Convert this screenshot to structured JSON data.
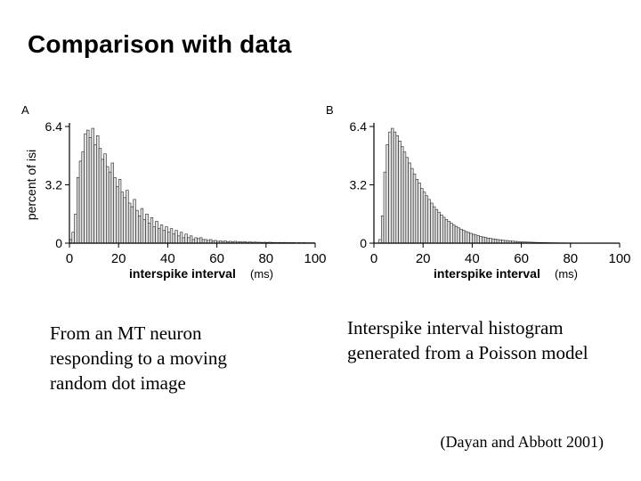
{
  "slide": {
    "title": "Comparison with data",
    "caption_a": "From an MT neuron responding to a moving random dot image",
    "caption_b": "Interspike interval histogram generated from a Poisson model",
    "citation": "(Dayan and Abbott 2001)"
  },
  "chart_data": [
    {
      "type": "bar",
      "panel_label": "A",
      "xlabel": "interspike interval",
      "xunit": "(ms)",
      "ylabel": "percent of isi",
      "xlim": [
        0,
        100
      ],
      "ylim": [
        0,
        6.4
      ],
      "xticks": [
        "0",
        "20",
        "40",
        "60",
        "80",
        "100"
      ],
      "yticks": [
        "0",
        "3.2",
        "6.4"
      ],
      "bin_width": 1,
      "values": [
        0.2,
        0.6,
        1.6,
        3.6,
        4.5,
        5.0,
        6.0,
        6.2,
        5.8,
        6.3,
        5.4,
        5.9,
        5.2,
        4.6,
        4.9,
        4.2,
        3.9,
        4.4,
        3.6,
        3.1,
        3.5,
        2.8,
        2.5,
        2.9,
        2.2,
        2.0,
        2.4,
        1.8,
        1.5,
        1.9,
        1.3,
        1.6,
        1.1,
        1.4,
        0.9,
        1.2,
        0.8,
        1.0,
        0.7,
        0.9,
        0.6,
        0.8,
        0.5,
        0.7,
        0.4,
        0.6,
        0.3,
        0.5,
        0.3,
        0.4,
        0.2,
        0.3,
        0.25,
        0.3,
        0.2,
        0.2,
        0.15,
        0.2,
        0.12,
        0.15,
        0.1,
        0.12,
        0.1,
        0.12,
        0.08,
        0.1,
        0.08,
        0.1,
        0.06,
        0.08,
        0.06,
        0.08,
        0.05,
        0.07,
        0.05,
        0.06,
        0.05,
        0.05,
        0.04,
        0.05,
        0.04,
        0.05,
        0.04,
        0.04,
        0.03,
        0.04,
        0.03,
        0.04,
        0.03,
        0.03,
        0.03,
        0.03,
        0.02,
        0.03,
        0.02,
        0.03,
        0.02,
        0.02,
        0.02,
        0.02
      ]
    },
    {
      "type": "bar",
      "panel_label": "B",
      "xlabel": "interspike interval",
      "xunit": "(ms)",
      "ylabel": "",
      "xlim": [
        0,
        100
      ],
      "ylim": [
        0,
        6.4
      ],
      "xticks": [
        "0",
        "20",
        "40",
        "60",
        "80",
        "100"
      ],
      "yticks": [
        "0",
        "3.2",
        "6.4"
      ],
      "bin_width": 1,
      "values": [
        0.0,
        0.0,
        0.2,
        1.5,
        3.9,
        5.4,
        6.1,
        6.3,
        6.1,
        5.9,
        5.6,
        5.3,
        5.0,
        4.7,
        4.4,
        4.1,
        3.8,
        3.5,
        3.3,
        3.0,
        2.8,
        2.6,
        2.4,
        2.2,
        2.0,
        1.85,
        1.7,
        1.55,
        1.42,
        1.3,
        1.2,
        1.1,
        1.0,
        0.92,
        0.84,
        0.77,
        0.7,
        0.64,
        0.59,
        0.54,
        0.49,
        0.45,
        0.41,
        0.37,
        0.34,
        0.31,
        0.28,
        0.26,
        0.24,
        0.22,
        0.2,
        0.18,
        0.16,
        0.15,
        0.14,
        0.12,
        0.11,
        0.1,
        0.09,
        0.08,
        0.07,
        0.065,
        0.06,
        0.055,
        0.05,
        0.045,
        0.04,
        0.037,
        0.034,
        0.031,
        0.028,
        0.025,
        0.023,
        0.021,
        0.019,
        0.017,
        0.015,
        0.014,
        0.013,
        0.012,
        0.011,
        0.01,
        0.01,
        0.01,
        0.01,
        0.01,
        0.01,
        0.01,
        0.01,
        0.01,
        0.01,
        0.01,
        0.01,
        0.01,
        0.01,
        0.01,
        0.01,
        0.01,
        0.01,
        0.01
      ]
    }
  ]
}
